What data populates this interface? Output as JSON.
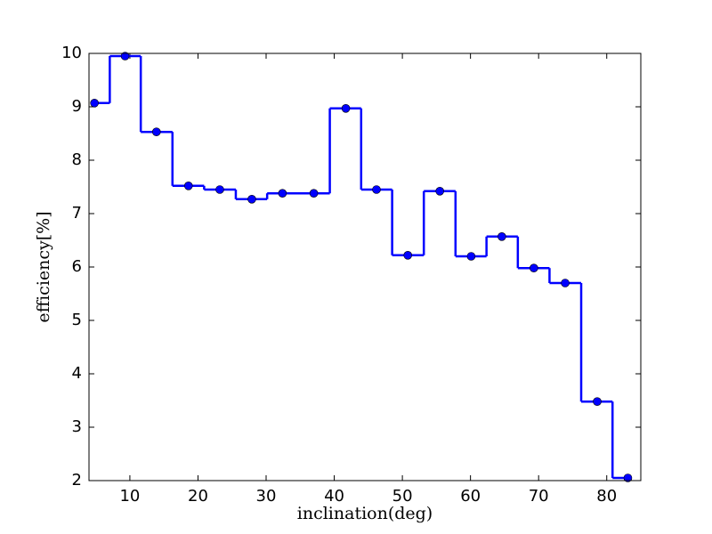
{
  "chart_data": {
    "type": "step",
    "x_label": "inclination(deg)",
    "y_label": "efficiency[%]",
    "x": [
      4.8,
      9.3,
      13.9,
      18.6,
      23.2,
      27.9,
      32.4,
      37.0,
      41.7,
      46.2,
      50.8,
      55.5,
      60.1,
      64.6,
      69.3,
      73.9,
      78.6,
      83.1
    ],
    "values": [
      9.07,
      9.95,
      8.53,
      7.52,
      7.45,
      7.27,
      7.38,
      7.38,
      8.97,
      7.45,
      6.22,
      7.42,
      6.2,
      6.57,
      5.98,
      5.7,
      3.48,
      2.05
    ],
    "color": "#0000ff",
    "markers": true,
    "xlim": [
      4,
      85
    ],
    "xticks": [
      10,
      20,
      30,
      40,
      50,
      60,
      70,
      80
    ],
    "ylim": [
      2,
      10
    ],
    "yticks": [
      2,
      3,
      4,
      5,
      6,
      7,
      8,
      9,
      10
    ],
    "grid": false
  }
}
